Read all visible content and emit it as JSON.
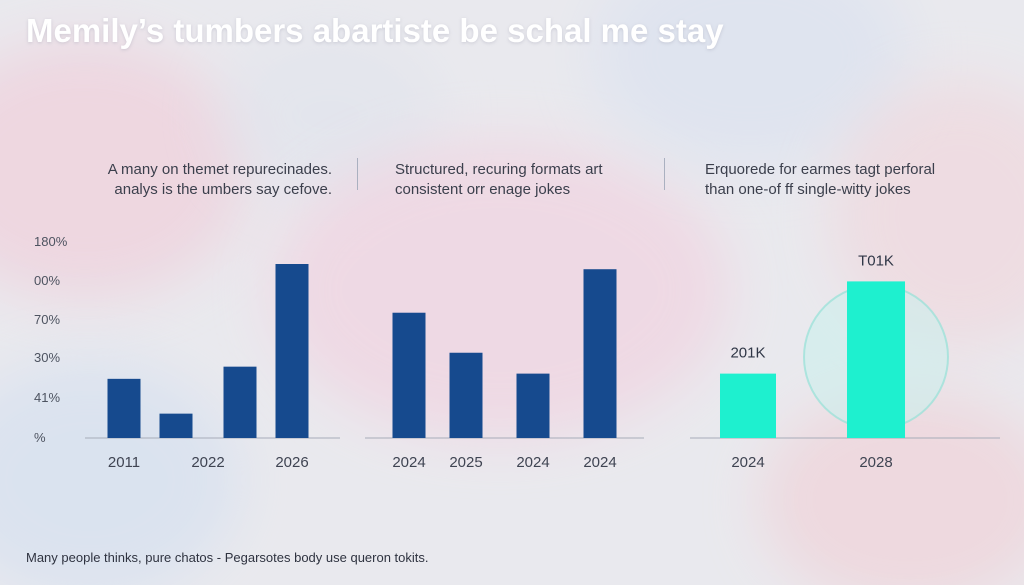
{
  "title": "Memily’s tumbers abartiste be schal me stay",
  "captions": [
    [
      "A many on themet repurecinades.",
      "analys is the umbers say cefove."
    ],
    [
      "Structured, recuring formats art",
      "consistent orr enage jokes"
    ],
    [
      "Erquorede for earmes tagt perforal",
      "than one-of ff single-witty jokes"
    ]
  ],
  "footer": "Many people thinks, pure chatos  -  Pegarsotes body use queron tokits.",
  "colors": {
    "bar_blue": "#164a8e",
    "bar_teal": "#1ef0cf",
    "axis": "#a7acb9"
  },
  "chart_data": [
    {
      "type": "bar",
      "ytick_labels": [
        "180%",
        "00%",
        "70%",
        "30%",
        "41%",
        "%"
      ],
      "bars": [
        {
          "category": "",
          "value": 0.34
        },
        {
          "category": "",
          "value": 0.14
        },
        {
          "category": "",
          "value": 0.41
        },
        {
          "category": "",
          "value": 1.0
        }
      ],
      "x_labels": [
        {
          "text": "2011",
          "at": 0
        },
        {
          "text": "2022",
          "at": 1.5
        },
        {
          "text": "2026",
          "at": 3
        }
      ],
      "color": "#164a8e"
    },
    {
      "type": "bar",
      "bars": [
        {
          "category": "2024",
          "value": 0.72
        },
        {
          "category": "2025",
          "value": 0.49
        },
        {
          "category": "2024",
          "value": 0.37
        },
        {
          "category": "2024",
          "value": 0.97
        }
      ],
      "color": "#164a8e"
    },
    {
      "type": "bar",
      "bars": [
        {
          "category": "2024",
          "value": 0.37,
          "label": "201K"
        },
        {
          "category": "2028",
          "value": 0.9,
          "label": "T01K"
        }
      ],
      "color": "#1ef0cf"
    }
  ]
}
